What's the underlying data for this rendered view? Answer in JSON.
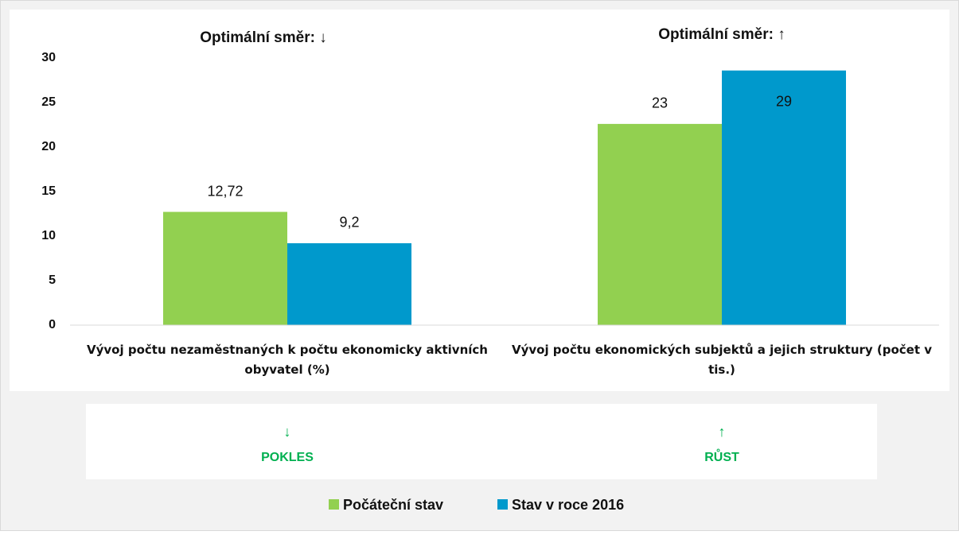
{
  "chart_data": {
    "type": "bar",
    "annotations": [
      "Optimální směr: ↓",
      "Optimální směr: ↑"
    ],
    "categories": [
      "Vývoj počtu nezaměstnaných k počtu ekonomicky aktivních obyvatel (%)",
      "Vývoj počtu ekonomických subjektů a jejich struktury (počet v tis.)"
    ],
    "series": [
      {
        "name": "Počáteční stav",
        "color": "#92d050",
        "values": [
          12.72,
          22.6
        ],
        "value_labels": [
          "12,72",
          "23"
        ]
      },
      {
        "name": "Stav v roce 2016",
        "color": "#0099cc",
        "values": [
          9.2,
          28.6
        ],
        "value_labels": [
          "9,2",
          "29"
        ]
      }
    ],
    "indicators": [
      {
        "arrow": "↓",
        "label": "POKLES"
      },
      {
        "arrow": "↑",
        "label": "RŮST"
      }
    ],
    "ylim": [
      0,
      30
    ],
    "yticks": [
      0,
      5,
      10,
      15,
      20,
      25,
      30
    ],
    "grid": false,
    "legend": "bottom"
  }
}
